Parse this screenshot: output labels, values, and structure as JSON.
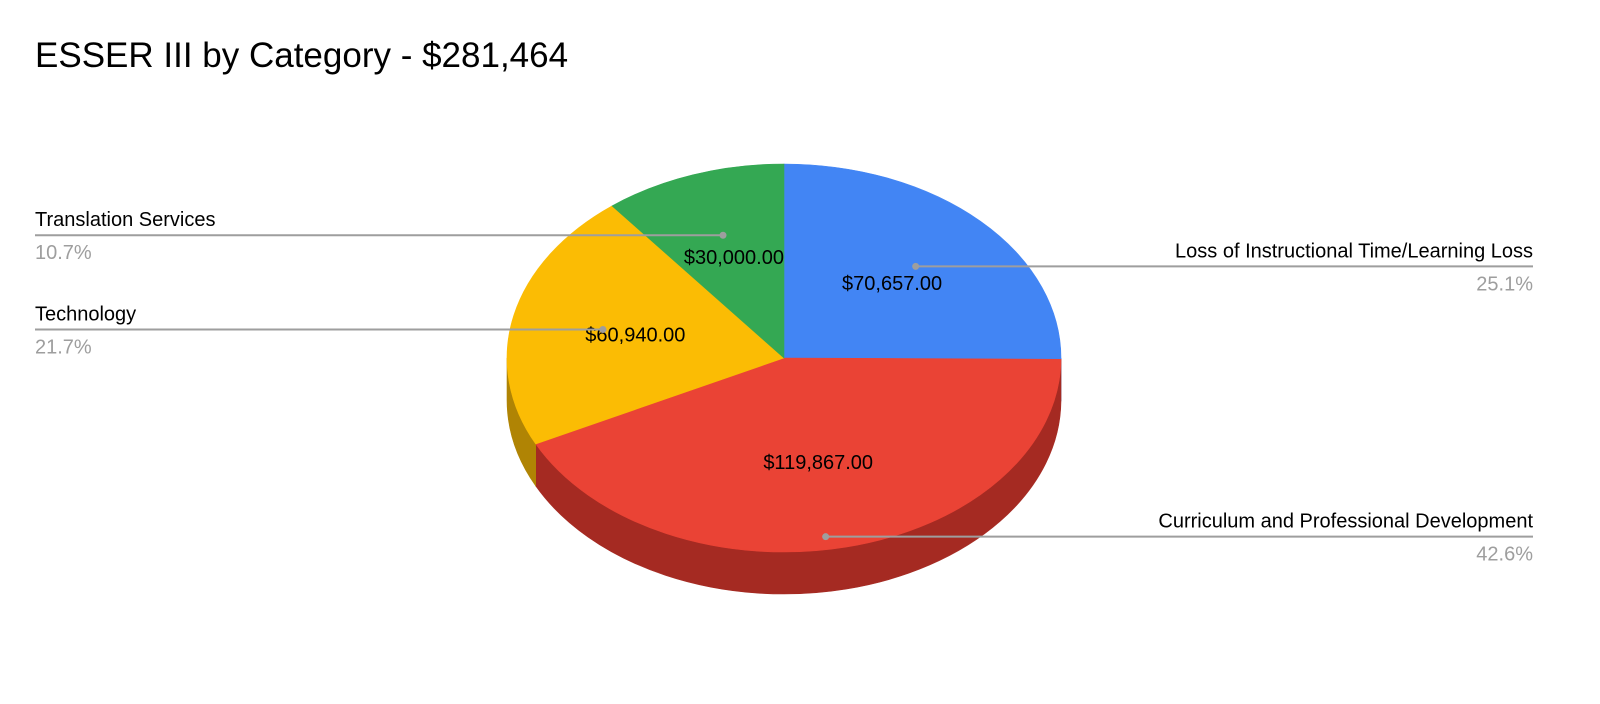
{
  "chart_data": {
    "type": "pie",
    "title": "ESSER III by Category - $281,464",
    "slices": [
      {
        "label": "Loss of Instructional Time/Learning Loss",
        "value": 70657.0,
        "value_label": "$70,657.00",
        "percent_label": "25.1%",
        "color": "#4285f4",
        "side_color": "#2a5fb8"
      },
      {
        "label": "Curriculum and Professional Development",
        "value": 119867.0,
        "value_label": "$119,867.00",
        "percent_label": "42.6%",
        "color": "#ea4335",
        "side_color": "#a52a22"
      },
      {
        "label": "Technology",
        "value": 60940.0,
        "value_label": "$60,940.00",
        "percent_label": "21.7%",
        "color": "#fbbc04",
        "side_color": "#b08404"
      },
      {
        "label": "Translation Services",
        "value": 30000.0,
        "value_label": "$30,000.00",
        "percent_label": "10.7%",
        "color": "#34a853",
        "side_color": "#23763a"
      }
    ],
    "legend": "none",
    "style": "3d"
  }
}
